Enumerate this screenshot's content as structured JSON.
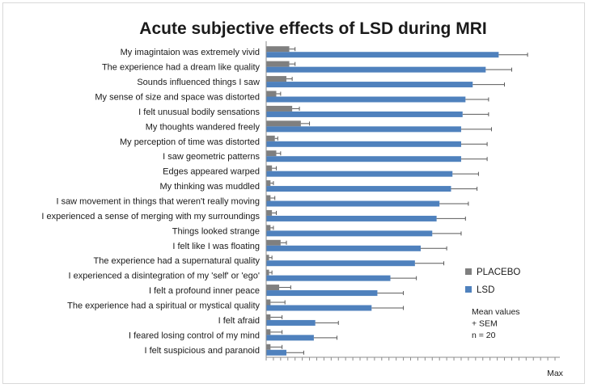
{
  "chart_data": {
    "type": "bar",
    "orientation": "horizontal",
    "title": "Acute subjective effects of LSD during MRI",
    "x_axis_end_label": "Max",
    "x_range": [
      0,
      1
    ],
    "grid": false,
    "legend_position": "right",
    "categories": [
      "My imagintaion was extremely vivid",
      "The experience had a dream like quality",
      "Sounds influenced things I saw",
      "My sense of size and space was distorted",
      "I felt unusual bodily sensations",
      "My thoughts wandered freely",
      "My perception of time was distorted",
      "I saw geometric patterns",
      "Edges appeared warped",
      "My thinking was muddled",
      "I saw movement in things that weren't really moving",
      "I experienced a sense of merging with my surroundings",
      "Things looked strange",
      "I felt like I was floating",
      "The experience had a supernatural quality",
      "I experienced a disintegration of my 'self' or 'ego'",
      "I felt a profound inner peace",
      "The experience had a spiritual or mystical quality",
      "I felt afraid",
      "I feared losing control of my mind",
      "I felt suspicious and paranoid"
    ],
    "series": [
      {
        "name": "PLACEBO",
        "color": "#7f7f7f",
        "values": [
          0.08,
          0.08,
          0.07,
          0.035,
          0.09,
          0.12,
          0.03,
          0.035,
          0.02,
          0.015,
          0.015,
          0.02,
          0.015,
          0.05,
          0.01,
          0.01,
          0.045,
          0.015,
          0.015,
          0.015,
          0.015
        ],
        "sem": [
          0.02,
          0.02,
          0.02,
          0.015,
          0.025,
          0.03,
          0.01,
          0.015,
          0.015,
          0.01,
          0.015,
          0.015,
          0.01,
          0.02,
          0.01,
          0.01,
          0.04,
          0.05,
          0.04,
          0.04,
          0.04
        ]
      },
      {
        "name": "LSD",
        "color": "#4f81bd",
        "values": [
          0.805,
          0.76,
          0.715,
          0.69,
          0.68,
          0.675,
          0.675,
          0.675,
          0.645,
          0.64,
          0.6,
          0.59,
          0.575,
          0.535,
          0.515,
          0.43,
          0.385,
          0.365,
          0.17,
          0.165,
          0.07
        ],
        "sem": [
          0.1,
          0.09,
          0.11,
          0.08,
          0.09,
          0.105,
          0.09,
          0.09,
          0.09,
          0.09,
          0.1,
          0.1,
          0.1,
          0.09,
          0.1,
          0.09,
          0.09,
          0.11,
          0.08,
          0.08,
          0.06
        ]
      }
    ],
    "annotation_lines": [
      "Mean values",
      "+ SEM",
      "n = 20"
    ]
  }
}
